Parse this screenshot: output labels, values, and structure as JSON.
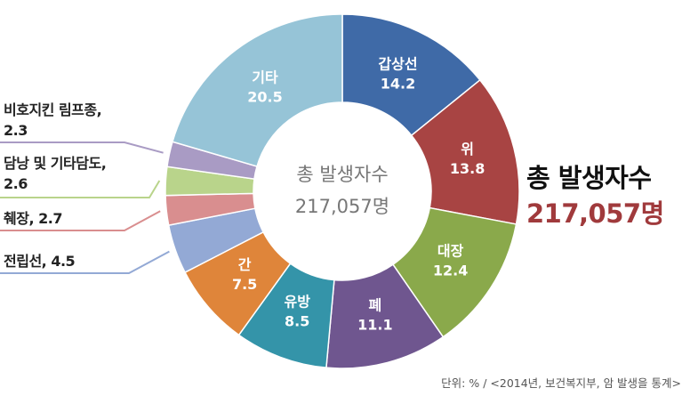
{
  "chart_data": {
    "type": "donut",
    "categories": [
      "갑상선",
      "위",
      "대장",
      "폐",
      "유방",
      "간",
      "전립선",
      "췌장",
      "담낭 및 기타담도",
      "비호지킨 림프종",
      "기타"
    ],
    "values": [
      14.2,
      13.8,
      12.4,
      11.1,
      8.5,
      7.5,
      4.5,
      2.7,
      2.6,
      2.3,
      20.5
    ],
    "colors": [
      "#3f6aa7",
      "#a84443",
      "#8aa94b",
      "#6f568f",
      "#3494a9",
      "#df853a",
      "#93a9d5",
      "#d98e8f",
      "#b9d48b",
      "#a99bc4",
      "#96c4d7"
    ],
    "center_title": "총 발생자수",
    "center_value": "217,057명",
    "annotation": {
      "title": "총 발생자수",
      "value": "217,057명"
    },
    "source": "단위: % / <2014년, 보건복지부, 암 발생을 통계>"
  }
}
